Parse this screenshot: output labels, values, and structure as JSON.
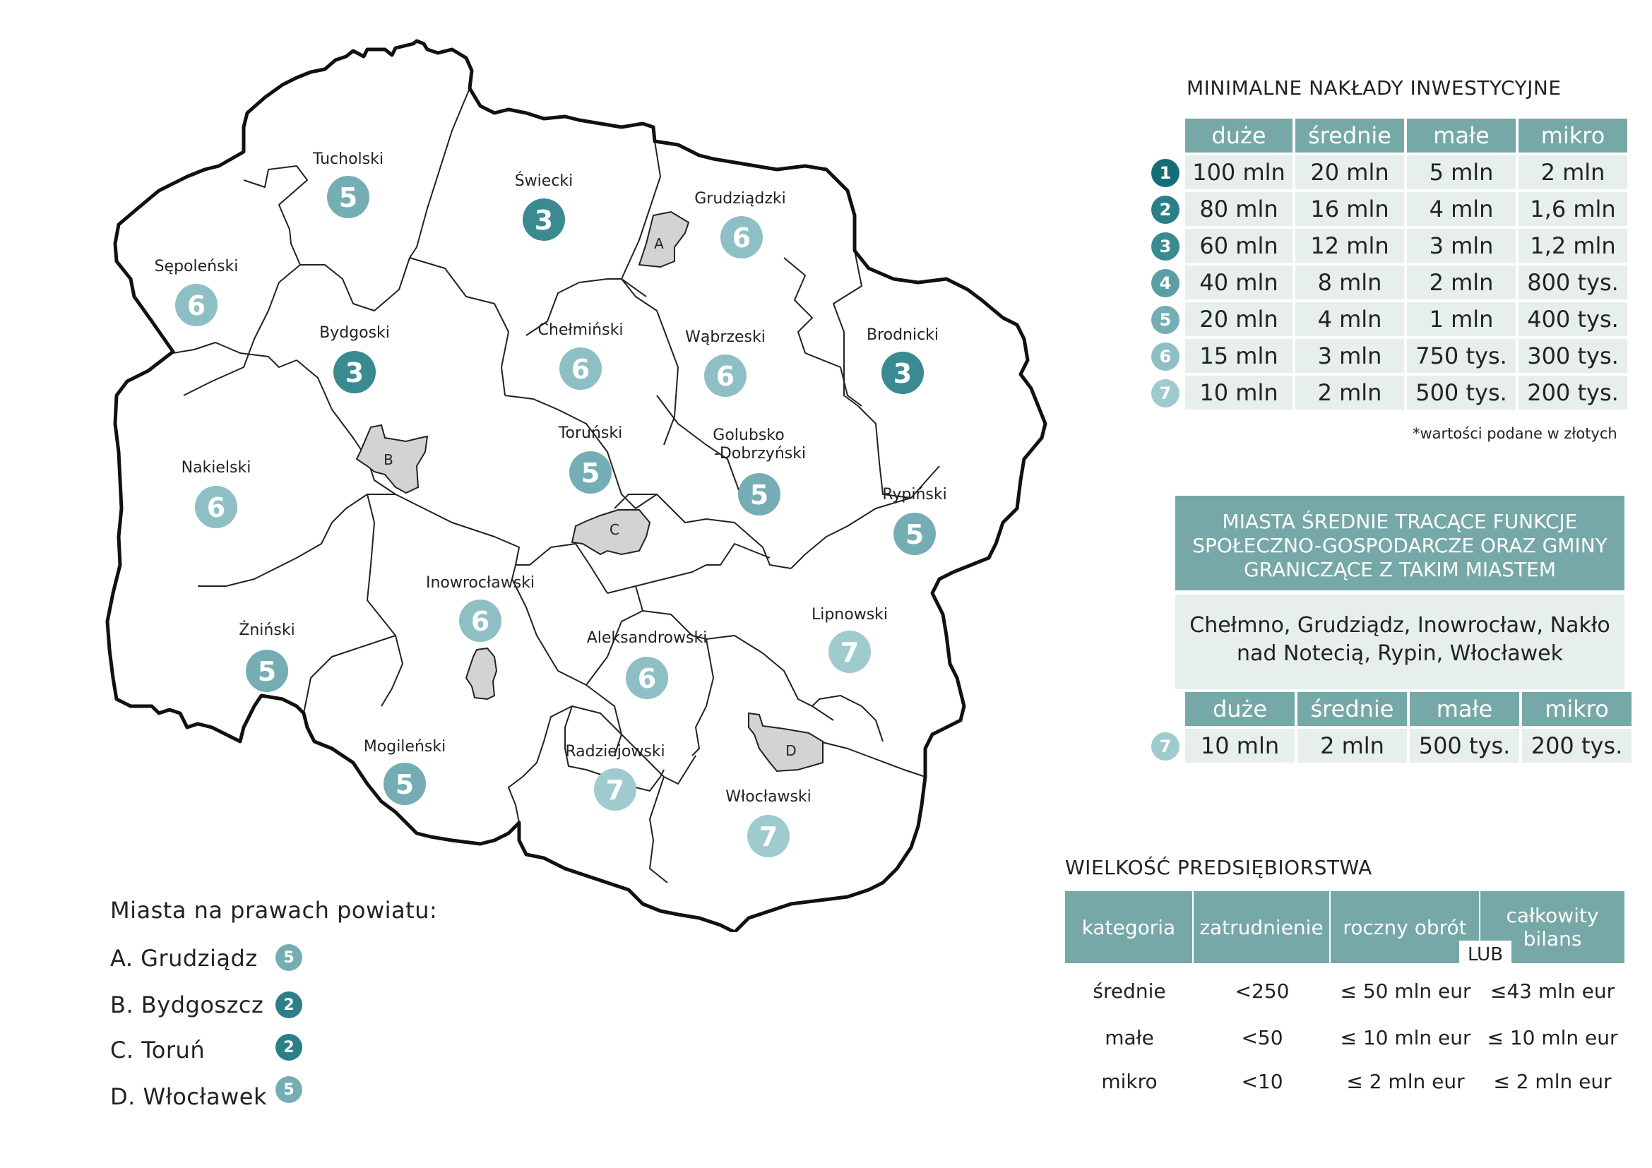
{
  "map": {
    "counties": [
      {
        "name": "Tucholski",
        "level": 5
      },
      {
        "name": "Świecki",
        "level": 3
      },
      {
        "name": "Grudziądzki",
        "level": 6
      },
      {
        "name": "Sępoleński",
        "level": 6
      },
      {
        "name": "Bydgoski",
        "level": 3
      },
      {
        "name": "Chełmiński",
        "level": 6
      },
      {
        "name": "Wąbrzeski",
        "level": 6
      },
      {
        "name": "Brodnicki",
        "level": 3
      },
      {
        "name": "Nakielski",
        "level": 6
      },
      {
        "name": "Toruński",
        "level": 5
      },
      {
        "name": "Golubsko",
        "name2": "-Dobrzyński",
        "level": 5
      },
      {
        "name": "Rypiński",
        "level": 5
      },
      {
        "name": "Inowrocławski",
        "level": 6
      },
      {
        "name": "Lipnowski",
        "level": 7
      },
      {
        "name": "Żniński",
        "level": 5
      },
      {
        "name": "Aleksandrowski",
        "level": 6
      },
      {
        "name": "Mogileński",
        "level": 5
      },
      {
        "name": "Radziejowski",
        "level": 7
      },
      {
        "name": "Włocławski",
        "level": 7
      }
    ],
    "city_letters": [
      "A",
      "B",
      "C",
      "D"
    ]
  },
  "cities": {
    "title": "Miasta na prawach powiatu:",
    "items": [
      {
        "label": "A. Grudziądz",
        "level": "5"
      },
      {
        "label": "B. Bydgoszcz",
        "level": "2"
      },
      {
        "label": "C. Toruń",
        "level": "2"
      },
      {
        "label": "D. Włocławek",
        "level": "5"
      }
    ]
  },
  "investment": {
    "title": "MINIMALNE NAKŁADY INWESTYCYJNE",
    "headers": [
      "duże",
      "średnie",
      "małe",
      "mikro"
    ],
    "rows": [
      {
        "rank": "1",
        "values": [
          "100 mln",
          "20 mln",
          "5 mln",
          "2 mln"
        ]
      },
      {
        "rank": "2",
        "values": [
          "80 mln",
          "16 mln",
          "4 mln",
          "1,6 mln"
        ]
      },
      {
        "rank": "3",
        "values": [
          "60 mln",
          "12 mln",
          "3 mln",
          "1,2 mln"
        ]
      },
      {
        "rank": "4",
        "values": [
          "40 mln",
          "8 mln",
          "2 mln",
          "800 tys."
        ]
      },
      {
        "rank": "5",
        "values": [
          "20 mln",
          "4 mln",
          "1 mln",
          "400 tys."
        ]
      },
      {
        "rank": "6",
        "values": [
          "15 mln",
          "3 mln",
          "750 tys.",
          "300 tys."
        ]
      },
      {
        "rank": "7",
        "values": [
          "10 mln",
          "2 mln",
          "500 tys.",
          "200 tys."
        ]
      }
    ],
    "note": "*wartości podane w złotych"
  },
  "towns": {
    "head_lines": [
      "MIASTA ŚREDNIE TRACĄCE FUNKCJE",
      "SPOŁECZNO-GOSPODARCZE ORAZ GMINY",
      "GRANICZĄCE Z TAKIM MIASTEM"
    ],
    "body_lines": [
      "Chełmno, Grudziądz, Inowrocław, Nakło",
      "nad Notecią, Rypin, Włocławek"
    ],
    "headers": [
      "duże",
      "średnie",
      "małe",
      "mikro"
    ],
    "row": {
      "rank": "7",
      "values": [
        "10 mln",
        "2 mln",
        "500 tys.",
        "200 tys."
      ]
    }
  },
  "size": {
    "title": "WIELKOŚĆ PREDSIĘBIORSTWA",
    "headers": [
      "kategoria",
      "zatrudnienie",
      "roczny obrót",
      "całkowity bilans"
    ],
    "lub": "LUB",
    "rows": [
      [
        "średnie",
        "<250",
        "≤ 50 mln eur",
        "≤43 mln eur"
      ],
      [
        "małe",
        "<50",
        "≤ 10 mln eur",
        "≤ 10 mln eur"
      ],
      [
        "mikro",
        "<10",
        "≤ 2 mln eur",
        "≤ 2 mln eur"
      ]
    ]
  },
  "colors": {
    "1": "#166d75",
    "2": "#2c7f87",
    "3": "#3a8a92",
    "4": "#5c9ea5",
    "5": "#74aeb4",
    "6": "#8dbfc4",
    "7": "#9fcace",
    "header": "#76a8a7",
    "cell": "#e6efee",
    "city_fill": "#d3d3d3"
  }
}
